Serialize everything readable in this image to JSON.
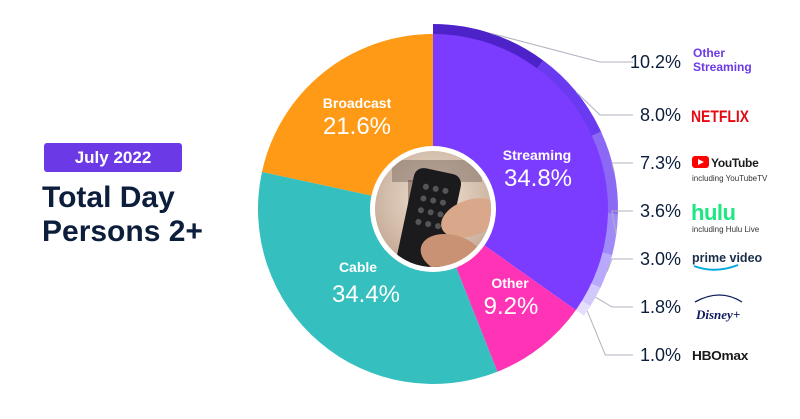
{
  "header": {
    "date_badge": "July 2022",
    "title_line1": "Total Day",
    "title_line2": "Persons 2+"
  },
  "center_image": {
    "description_icon": "tv-remote-icon"
  },
  "chart_data": {
    "type": "pie",
    "slices": [
      {
        "label": "Streaming",
        "value": 34.8,
        "display": "34.8%",
        "color": "#7b3cff"
      },
      {
        "label": "Other",
        "value": 9.2,
        "display": "9.2%",
        "color": "#ff33b5"
      },
      {
        "label": "Cable",
        "value": 34.4,
        "display": "34.4%",
        "color": "#35bfbf"
      },
      {
        "label": "Broadcast",
        "value": 21.6,
        "display": "21.6%",
        "color": "#ff9a16"
      }
    ],
    "streaming_breakdown": [
      {
        "brand": "Other Streaming",
        "sub": "",
        "value": 10.2,
        "display": "10.2%",
        "color": "#4d22c9"
      },
      {
        "brand": "NETFLIX",
        "sub": "",
        "value": 8.0,
        "display": "8.0%",
        "color": "#6a3af0"
      },
      {
        "brand": "YouTube",
        "sub": "including YouTubeTV",
        "value": 7.3,
        "display": "7.3%",
        "color": "#8b69f5"
      },
      {
        "brand": "hulu",
        "sub": "including Hulu Live",
        "value": 3.6,
        "display": "3.6%",
        "color": "#a08af7"
      },
      {
        "brand": "prime video",
        "sub": "",
        "value": 3.0,
        "display": "3.0%",
        "color": "#b9a9fa"
      },
      {
        "brand": "Disney+",
        "sub": "",
        "value": 1.8,
        "display": "1.8%",
        "color": "#d2c8fc"
      },
      {
        "brand": "HBOmax",
        "sub": "",
        "value": 1.0,
        "display": "1.0%",
        "color": "#e5dffd"
      }
    ]
  },
  "colors": {
    "accent_purple": "#6b3ae6",
    "navy_text": "#0c1e3c",
    "netflix_red": "#e50914",
    "youtube_red": "#ff0000",
    "hulu_green": "#1ce783",
    "prime_blue": "#00a8e1",
    "disney_navy": "#0f1a5c",
    "hbo_purple": "#2b0a6b"
  }
}
